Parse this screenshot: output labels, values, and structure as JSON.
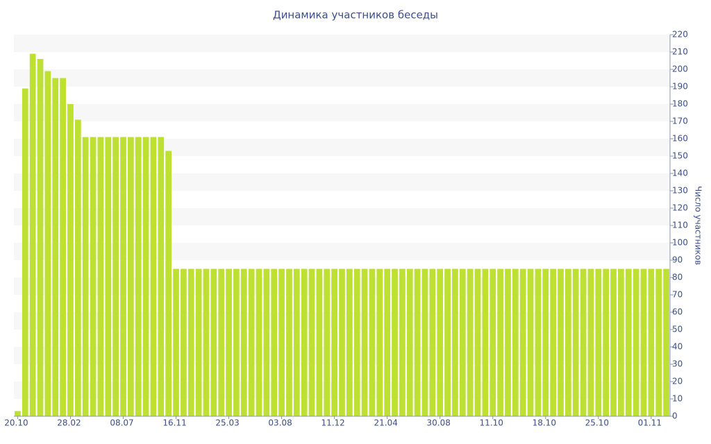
{
  "chart_data": {
    "type": "bar",
    "title": "Динамика участников беседы",
    "y_label": "Число участников",
    "categories": [
      "20.10",
      null,
      null,
      null,
      null,
      null,
      null,
      "28.02",
      null,
      null,
      null,
      null,
      null,
      null,
      "08.07",
      null,
      null,
      null,
      null,
      null,
      null,
      "16.11",
      null,
      null,
      null,
      null,
      null,
      null,
      "25.03",
      null,
      null,
      null,
      null,
      null,
      null,
      "03.08",
      null,
      null,
      null,
      null,
      null,
      null,
      "11.12",
      null,
      null,
      null,
      null,
      null,
      null,
      "21.04",
      null,
      null,
      null,
      null,
      null,
      null,
      "30.08",
      null,
      null,
      null,
      null,
      null,
      null,
      "11.10",
      null,
      null,
      null,
      null,
      null,
      null,
      "18.10",
      null,
      null,
      null,
      null,
      null,
      null,
      "25.10",
      null,
      null,
      null,
      null,
      null,
      null,
      "01.11",
      null,
      null
    ],
    "values": [
      3,
      189,
      209,
      206,
      199,
      195,
      195,
      180,
      171,
      161,
      161,
      161,
      161,
      161,
      161,
      161,
      161,
      161,
      161,
      161,
      153,
      85,
      85,
      85,
      85,
      85,
      85,
      85,
      85,
      85,
      85,
      85,
      85,
      85,
      85,
      85,
      85,
      85,
      85,
      85,
      85,
      85,
      85,
      85,
      85,
      85,
      85,
      85,
      85,
      85,
      85,
      85,
      85,
      85,
      85,
      85,
      85,
      85,
      85,
      85,
      85,
      85,
      85,
      85,
      85,
      85,
      85,
      85,
      85,
      85,
      85,
      85,
      85,
      85,
      85,
      85,
      85,
      85,
      85,
      85,
      85,
      85,
      85,
      85,
      85,
      85,
      85
    ],
    "color": "#bde033",
    "ylim": [
      0,
      220
    ],
    "yticks": [
      0,
      10,
      20,
      30,
      40,
      50,
      60,
      70,
      80,
      90,
      100,
      110,
      120,
      130,
      140,
      150,
      160,
      170,
      180,
      190,
      200,
      210,
      220
    ],
    "grid": true
  }
}
